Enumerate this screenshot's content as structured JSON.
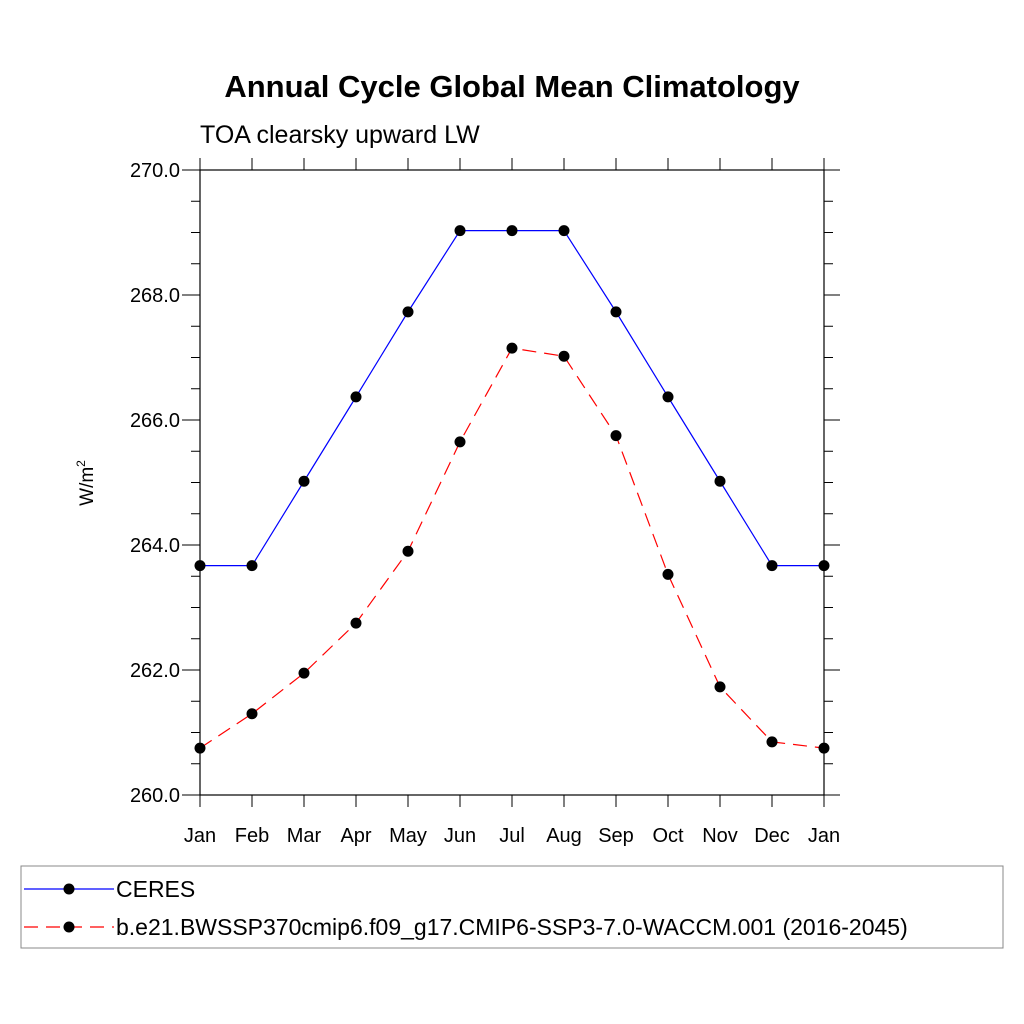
{
  "chart_data": {
    "type": "line",
    "title": "Annual Cycle Global Mean Climatology",
    "subtitle": "TOA clearsky upward LW",
    "ylabel": "W/m",
    "ylabel_superscript": "2",
    "categories": [
      "Jan",
      "Feb",
      "Mar",
      "Apr",
      "May",
      "Jun",
      "Jul",
      "Aug",
      "Sep",
      "Oct",
      "Nov",
      "Dec",
      "Jan"
    ],
    "ylim": [
      260.0,
      270.0
    ],
    "yticks": [
      "260.0",
      "262.0",
      "264.0",
      "266.0",
      "268.0",
      "270.0"
    ],
    "series": [
      {
        "name": "CERES",
        "color": "#0000ff",
        "dash": "solid",
        "values": [
          263.67,
          263.67,
          265.02,
          266.37,
          267.73,
          269.03,
          269.03,
          269.03,
          267.73,
          266.37,
          265.02,
          263.67,
          263.67
        ]
      },
      {
        "name": "b.e21.BWSSP370cmip6.f09_g17.CMIP6-SSP3-7.0-WACCM.001 (2016-2045)",
        "color": "#ff0000",
        "dash": "dashed",
        "values": [
          260.75,
          261.3,
          261.95,
          262.75,
          263.9,
          265.65,
          267.15,
          267.02,
          265.75,
          263.53,
          261.73,
          260.85,
          260.75
        ]
      }
    ],
    "legend": "bottom"
  }
}
